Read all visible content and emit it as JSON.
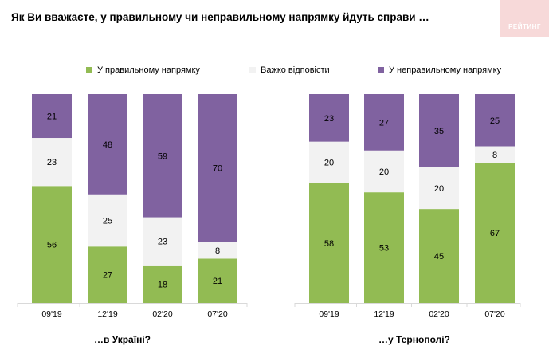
{
  "title": "Як Ви вважаєте, у правильному чи неправильному напрямку йдуть справи …",
  "logo": "РЕЙТИНГ",
  "colors": {
    "right": "#92bb53",
    "hard": "#f2f2f2",
    "wrong": "#8062a0"
  },
  "chart_data": {
    "type": "bar",
    "stacked": true,
    "legend": [
      "У правильному напрямку",
      "Важко відповісти",
      "У неправильному напрямку"
    ],
    "groups": [
      {
        "label": "…в Україні?",
        "categories": [
          "09'19",
          "12'19",
          "02'20",
          "07'20"
        ],
        "series": [
          {
            "name": "У правильному напрямку",
            "values": [
              56,
              27,
              18,
              21
            ]
          },
          {
            "name": "Важко відповісти",
            "values": [
              23,
              25,
              23,
              8
            ]
          },
          {
            "name": "У неправильному напрямку",
            "values": [
              21,
              48,
              59,
              70
            ]
          }
        ]
      },
      {
        "label": "…у Тернополі?",
        "categories": [
          "09'19",
          "12'19",
          "02'20",
          "07'20"
        ],
        "series": [
          {
            "name": "У правильному напрямку",
            "values": [
              58,
              53,
              45,
              67
            ]
          },
          {
            "name": "Важко відповісти",
            "values": [
              20,
              20,
              20,
              8
            ]
          },
          {
            "name": "У неправильному напрямку",
            "values": [
              23,
              27,
              35,
              25
            ]
          }
        ]
      }
    ]
  }
}
